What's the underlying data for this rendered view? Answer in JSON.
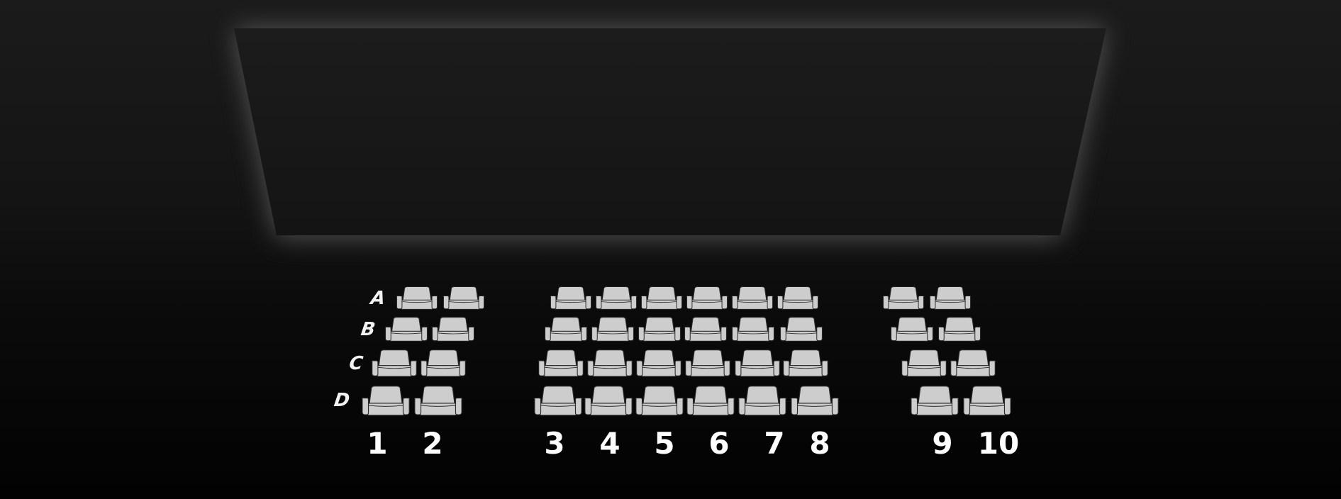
{
  "theater": {
    "background_color": "#111111",
    "screen_color": "#171717",
    "seat_color": "#cdcdcd",
    "seat_outline_color": "#2a2a2a",
    "label_color": "#ffffff"
  },
  "rows": [
    {
      "label": "A",
      "seats": [
        "1",
        "2",
        "3",
        "4",
        "5",
        "6",
        "7",
        "8",
        "9",
        "10"
      ]
    },
    {
      "label": "B",
      "seats": [
        "1",
        "2",
        "3",
        "4",
        "5",
        "6",
        "7",
        "8",
        "9",
        "10"
      ]
    },
    {
      "label": "C",
      "seats": [
        "1",
        "2",
        "3",
        "4",
        "5",
        "6",
        "7",
        "8",
        "9",
        "10"
      ]
    },
    {
      "label": "D",
      "seats": [
        "1",
        "2",
        "3",
        "4",
        "5",
        "6",
        "7",
        "8",
        "9",
        "10"
      ]
    }
  ],
  "columns": [
    "1",
    "2",
    "3",
    "4",
    "5",
    "6",
    "7",
    "8",
    "9",
    "10"
  ]
}
